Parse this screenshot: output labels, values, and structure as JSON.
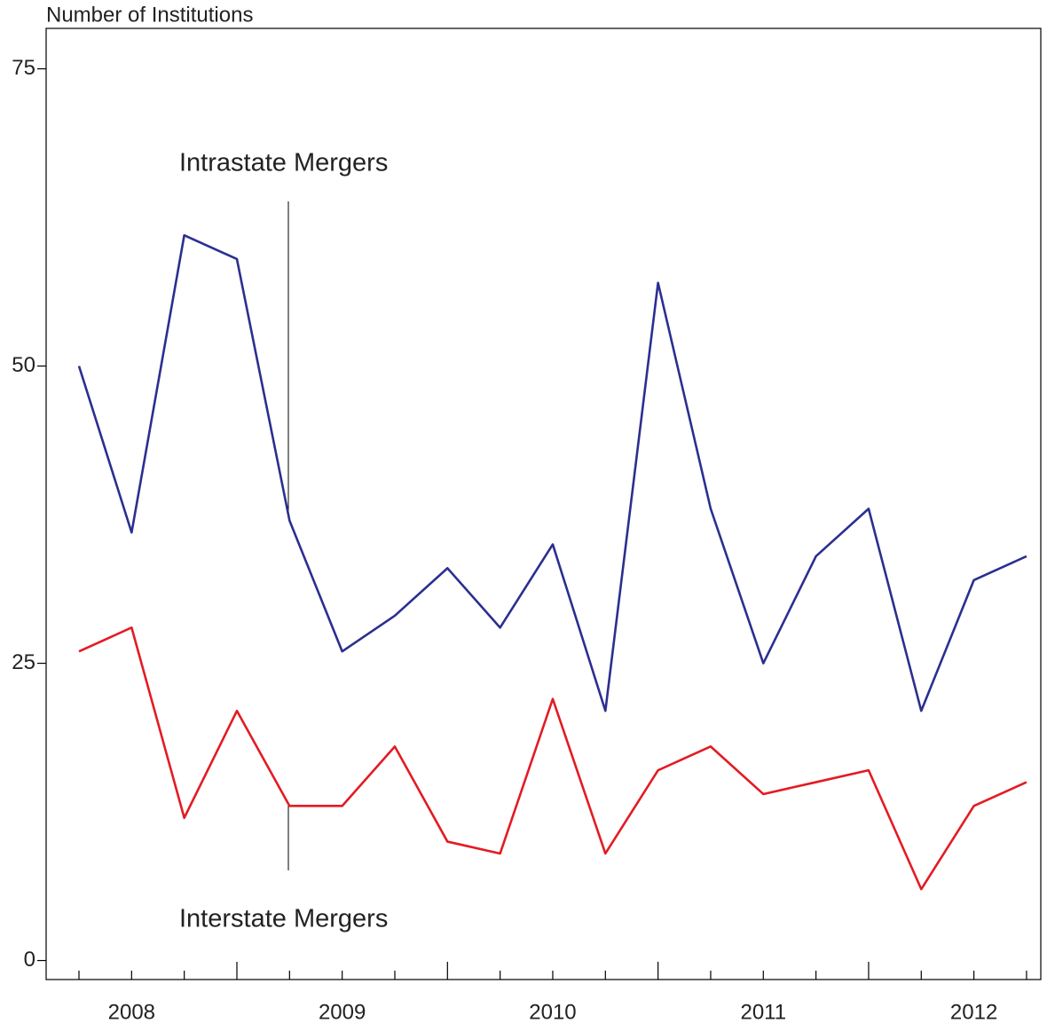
{
  "chart_data": {
    "type": "line",
    "y_label": "Number of Institutions",
    "categories": [
      null,
      "2008",
      null,
      null,
      null,
      "2009",
      null,
      null,
      null,
      "2010",
      null,
      null,
      null,
      "2011",
      null,
      null,
      null,
      "2012",
      null
    ],
    "series": [
      {
        "name": "Intrastate Mergers",
        "color": "#2b2f8f",
        "values": [
          50,
          36,
          61,
          59,
          37,
          26,
          29,
          33,
          28,
          35,
          21,
          57,
          38,
          25,
          34,
          38,
          21,
          32,
          34
        ]
      },
      {
        "name": "Interstate Mergers",
        "color": "#e31b23",
        "values": [
          26,
          28,
          12,
          21,
          13,
          13,
          18,
          10,
          9,
          22,
          9,
          16,
          18,
          14,
          15,
          16,
          6,
          13,
          15
        ]
      }
    ],
    "ylim": [
      -1.6,
      78.4
    ],
    "yticks": [
      0,
      25,
      50,
      75
    ],
    "grid": false
  }
}
